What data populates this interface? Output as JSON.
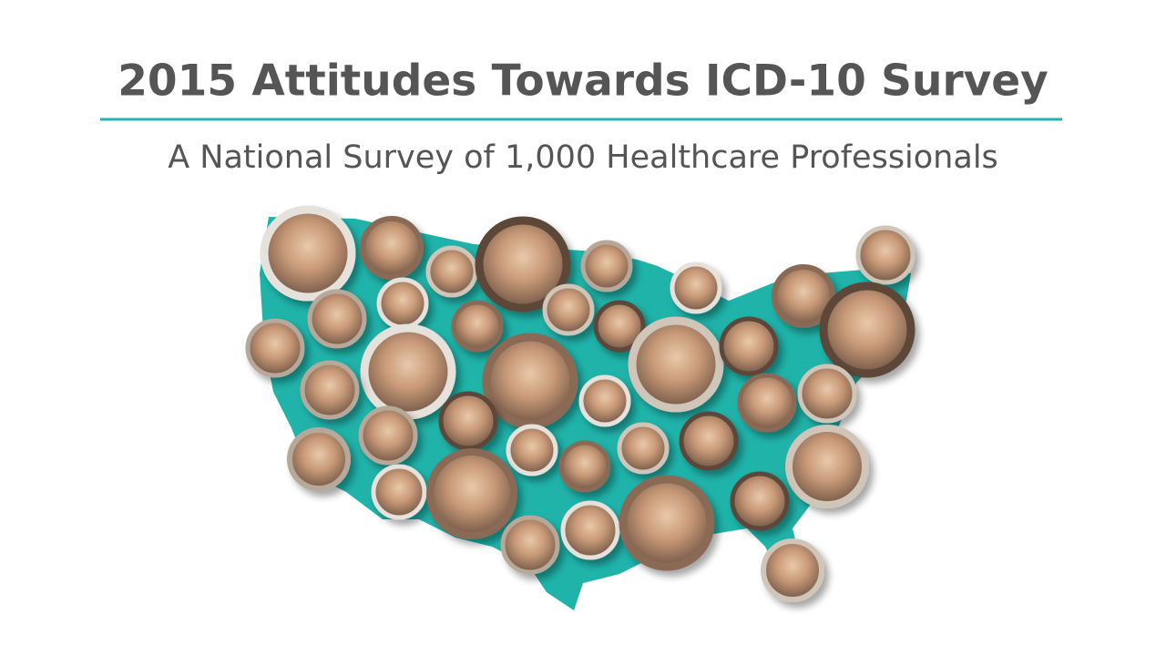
{
  "header": {
    "title": "2015 Attitudes Towards ICD-10 Survey",
    "subtitle": "A National Survey of 1,000 Healthcare Professionals"
  }
}
